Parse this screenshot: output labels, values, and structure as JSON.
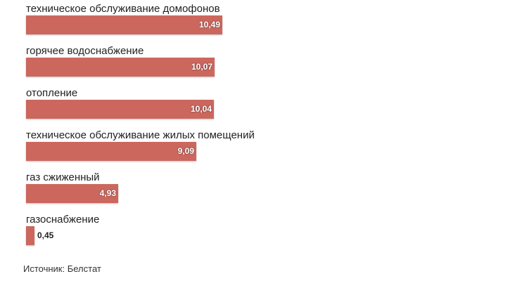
{
  "chart_data": {
    "type": "bar",
    "orientation": "horizontal",
    "categories": [
      "техническое обслуживание домофонов",
      "горячее водоснабжение",
      "отопление",
      "техническое обслуживание жилых помещений",
      "газ сжиженный",
      "газоснабжение"
    ],
    "values": [
      10.49,
      10.07,
      10.04,
      9.09,
      4.93,
      0.45
    ],
    "value_labels": [
      "10,49",
      "10,07",
      "10,04",
      "9,09",
      "4,93",
      "0,45"
    ],
    "title": "",
    "xlabel": "",
    "ylabel": "",
    "xlim": [
      0,
      10.49
    ],
    "grid": false,
    "legend": "none",
    "bar_color": "#cc675e"
  },
  "source": "Источник: Белстат"
}
